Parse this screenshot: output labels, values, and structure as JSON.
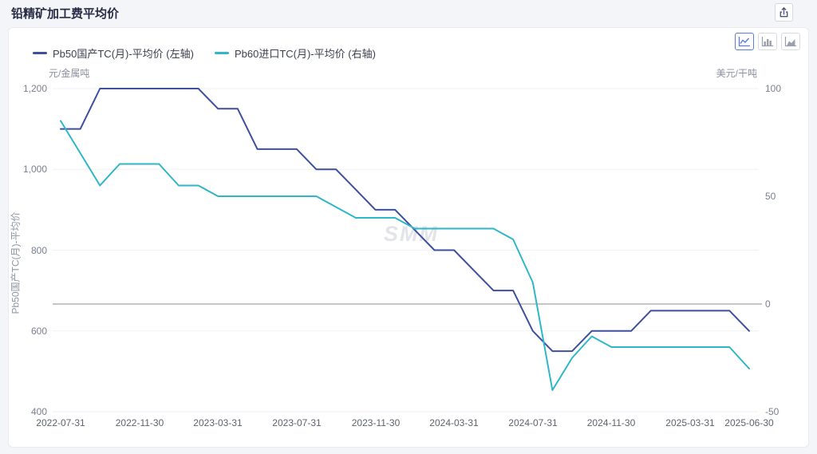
{
  "page": {
    "title": "铅精矿加工费平均价"
  },
  "toolbar": {
    "buttons": [
      {
        "name": "line-chart",
        "active": true
      },
      {
        "name": "bar-chart",
        "active": false
      },
      {
        "name": "area-chart",
        "active": false
      }
    ]
  },
  "watermark": "SMM",
  "chart_data": {
    "type": "line",
    "x": [
      "2022-07-31",
      "2022-08-31",
      "2022-09-30",
      "2022-10-31",
      "2022-11-30",
      "2022-12-31",
      "2023-01-31",
      "2023-02-28",
      "2023-03-31",
      "2023-04-30",
      "2023-05-31",
      "2023-06-30",
      "2023-07-31",
      "2023-08-31",
      "2023-09-30",
      "2023-10-31",
      "2023-11-30",
      "2023-12-31",
      "2024-01-31",
      "2024-02-29",
      "2024-03-31",
      "2024-04-30",
      "2024-05-31",
      "2024-06-30",
      "2024-07-31",
      "2024-08-31",
      "2024-09-30",
      "2024-10-31",
      "2024-11-30",
      "2024-12-31",
      "2025-01-31",
      "2025-02-28",
      "2025-03-31",
      "2025-04-30",
      "2025-05-31",
      "2025-06-30"
    ],
    "x_tick_indices": [
      0,
      4,
      8,
      12,
      16,
      20,
      24,
      28,
      32,
      35
    ],
    "x_tick_labels": [
      "2022-07-31",
      "2022-11-30",
      "2023-03-31",
      "2023-07-31",
      "2023-11-30",
      "2024-03-31",
      "2024-07-31",
      "2024-11-30",
      "2025-03-31",
      "2025-06-30"
    ],
    "series": [
      {
        "name": "Pb50国产TC(月)-平均价 (左轴)",
        "axis": "left",
        "color": "#3e4f9e",
        "values": [
          1100,
          1100,
          1200,
          1200,
          1200,
          1200,
          1200,
          1200,
          1150,
          1150,
          1050,
          1050,
          1050,
          1000,
          1000,
          950,
          900,
          900,
          850,
          800,
          800,
          750,
          700,
          700,
          600,
          550,
          550,
          600,
          600,
          600,
          650,
          650,
          650,
          650,
          650,
          600
        ]
      },
      {
        "name": "Pb60进口TC(月)-平均价 (右轴)",
        "axis": "right",
        "color": "#2fb6c9",
        "values": [
          85,
          70,
          55,
          65,
          65,
          65,
          55,
          55,
          50,
          50,
          50,
          50,
          50,
          50,
          45,
          40,
          40,
          40,
          35,
          35,
          35,
          35,
          35,
          30,
          10,
          -40,
          -25,
          -15,
          -20,
          -20,
          -20,
          -20,
          -20,
          -20,
          -20,
          -30
        ]
      }
    ],
    "left_axis": {
      "axis_title": "Pb50国产TC(月)-平均价",
      "unit": "元/金属吨",
      "tick_labels": [
        "1,200",
        "1,000",
        "800",
        "600",
        "400"
      ],
      "tick_values": [
        1200,
        1000,
        800,
        600,
        400
      ],
      "range": [
        400,
        1200
      ]
    },
    "right_axis": {
      "unit": "美元/干吨",
      "tick_labels": [
        "100",
        "50",
        "0",
        "-50"
      ],
      "tick_values": [
        100,
        50,
        0,
        -50
      ],
      "range": [
        -50,
        100
      ],
      "zero_line": true
    },
    "grid": {
      "horizontal_gridlines": true,
      "gridline_color": "#f0f1f5",
      "zero_line_color": "#8b8d94"
    },
    "legend_position": "top-left"
  }
}
